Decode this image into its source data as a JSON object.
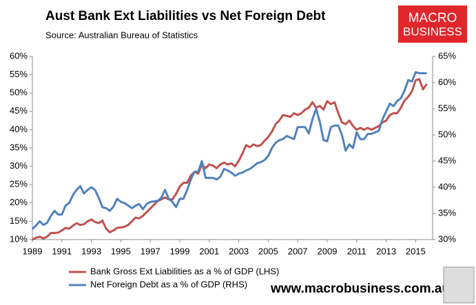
{
  "chart_data": {
    "type": "line",
    "title": "Aust Bank Ext Liabilities vs Net Foreign Debt",
    "subtitle": "Source:  Australian Bureau of Statistics",
    "logo": [
      "MACRO",
      "BUSINESS"
    ],
    "website": "www.macrobusiness.com.au",
    "x": [
      1989,
      1989.25,
      1989.5,
      1989.75,
      1990,
      1990.25,
      1990.5,
      1990.75,
      1991,
      1991.25,
      1991.5,
      1991.75,
      1992,
      1992.25,
      1992.5,
      1992.75,
      1993,
      1993.25,
      1993.5,
      1993.75,
      1994,
      1994.25,
      1994.5,
      1994.75,
      1995,
      1995.25,
      1995.5,
      1995.75,
      1996,
      1996.25,
      1996.5,
      1996.75,
      1997,
      1997.25,
      1997.5,
      1997.75,
      1998,
      1998.25,
      1998.5,
      1998.75,
      1999,
      1999.25,
      1999.5,
      1999.75,
      2000,
      2000.25,
      2000.5,
      2000.75,
      2001,
      2001.25,
      2001.5,
      2001.75,
      2002,
      2002.25,
      2002.5,
      2002.75,
      2003,
      2003.25,
      2003.5,
      2003.75,
      2004,
      2004.25,
      2004.5,
      2004.75,
      2005,
      2005.25,
      2005.5,
      2005.75,
      2006,
      2006.25,
      2006.5,
      2006.75,
      2007,
      2007.25,
      2007.5,
      2007.75,
      2008,
      2008.25,
      2008.5,
      2008.75,
      2009,
      2009.25,
      2009.5,
      2009.75,
      2010,
      2010.25,
      2010.5,
      2010.75,
      2011,
      2011.25,
      2011.5,
      2011.75,
      2012,
      2012.25,
      2012.5,
      2012.75,
      2013,
      2013.25,
      2013.5,
      2013.75,
      2014,
      2014.25,
      2014.5,
      2014.75,
      2015,
      2015.25,
      2015.5,
      2015.75
    ],
    "series": [
      {
        "name": "Bank Gross Ext Liabilities as a % of GDP (LHS)",
        "color": "#c0504d",
        "axis": "y",
        "values": [
          10,
          10.5,
          10.8,
          10.3,
          10.8,
          11.8,
          11.8,
          11.9,
          12.5,
          13.2,
          13,
          13.8,
          14.5,
          14,
          14.2,
          15,
          15.5,
          14.8,
          14.5,
          15.2,
          13,
          12,
          12.5,
          13.2,
          13.3,
          13.5,
          14,
          15,
          16,
          15.8,
          16.5,
          17.5,
          18.5,
          19.5,
          20.5,
          21,
          21.5,
          21,
          21,
          22.5,
          24.5,
          25.5,
          25.5,
          27.5,
          28.5,
          28,
          30.5,
          29.5,
          30.5,
          30.2,
          29.5,
          30.5,
          31,
          30.5,
          30.8,
          30,
          31.5,
          33.5,
          35.8,
          35.2,
          36,
          35.5,
          35.8,
          37,
          38,
          39.5,
          41.5,
          42.5,
          44,
          43.8,
          43.5,
          44.5,
          44,
          44.5,
          45.5,
          46,
          47.5,
          46,
          46.5,
          45.5,
          47.8,
          47,
          47.5,
          44.5,
          42,
          41.5,
          42.5,
          41,
          40,
          40.5,
          40,
          40.5,
          40,
          40.5,
          41,
          42,
          42.5,
          44,
          44.5,
          44.5,
          46,
          48,
          49,
          50.5,
          53.5,
          53.8,
          51,
          52.5
        ]
      },
      {
        "name": "Net Foreign Debt as a % of GDP (RHS)",
        "color": "#4f81bd",
        "axis": "y2",
        "values": [
          32,
          32.7,
          33.5,
          32.8,
          33.2,
          34.5,
          35.5,
          34.8,
          34.8,
          36.5,
          37,
          38.5,
          39.5,
          40.2,
          38.8,
          39.5,
          40,
          39.5,
          38,
          36.2,
          36,
          35.5,
          36.3,
          37.8,
          37.2,
          37,
          36.5,
          36,
          36.5,
          36.8,
          35.8,
          36.8,
          37.2,
          37.3,
          37.4,
          38,
          39.5,
          37.8,
          37.2,
          36.2,
          37.8,
          37.8,
          39.5,
          41.5,
          43,
          43,
          45,
          41.8,
          41.8,
          41.8,
          41.5,
          42,
          43.5,
          43.2,
          42.8,
          42.2,
          42.6,
          42.8,
          43.2,
          43.5,
          44,
          44.6,
          44.8,
          45.2,
          46,
          47.5,
          48.5,
          49,
          49.2,
          49.8,
          49.5,
          49.2,
          51.5,
          51.5,
          51.5,
          50.3,
          53,
          55,
          52.5,
          49,
          48.8,
          51.5,
          51.8,
          51.8,
          50,
          47,
          48.2,
          47.5,
          50.5,
          49.2,
          49.2,
          50.2,
          50.2,
          50.5,
          50.8,
          53,
          54.5,
          56,
          55.5,
          56.5,
          57,
          58.5,
          60.5,
          60.2,
          62,
          61.8,
          61.8,
          61.8
        ]
      }
    ],
    "xlim": [
      1989,
      2016.15
    ],
    "xticks": [
      1989,
      1991,
      1993,
      1995,
      1997,
      1999,
      2001,
      2003,
      2005,
      2007,
      2009,
      2011,
      2013,
      2015
    ],
    "ylim": [
      10,
      60
    ],
    "yticks": [
      {
        "value": 10,
        "label": "10%"
      },
      {
        "value": 15,
        "label": "15%"
      },
      {
        "value": 20,
        "label": "20%"
      },
      {
        "value": 25,
        "label": "25%"
      },
      {
        "value": 30,
        "label": "30%"
      },
      {
        "value": 35,
        "label": "35%"
      },
      {
        "value": 40,
        "label": "40%"
      },
      {
        "value": 45,
        "label": "45%"
      },
      {
        "value": 50,
        "label": "50%"
      },
      {
        "value": 55,
        "label": "55%"
      },
      {
        "value": 60,
        "label": "60%"
      }
    ],
    "y2lim": [
      30,
      65
    ],
    "y2ticks": [
      {
        "value": 30,
        "label": "30%"
      },
      {
        "value": 35,
        "label": "35%"
      },
      {
        "value": 40,
        "label": "40%"
      },
      {
        "value": 45,
        "label": "45%"
      },
      {
        "value": 50,
        "label": "50%"
      },
      {
        "value": 55,
        "label": "55%"
      },
      {
        "value": 60,
        "label": "60%"
      },
      {
        "value": 65,
        "label": "65%"
      }
    ],
    "grid": false
  }
}
